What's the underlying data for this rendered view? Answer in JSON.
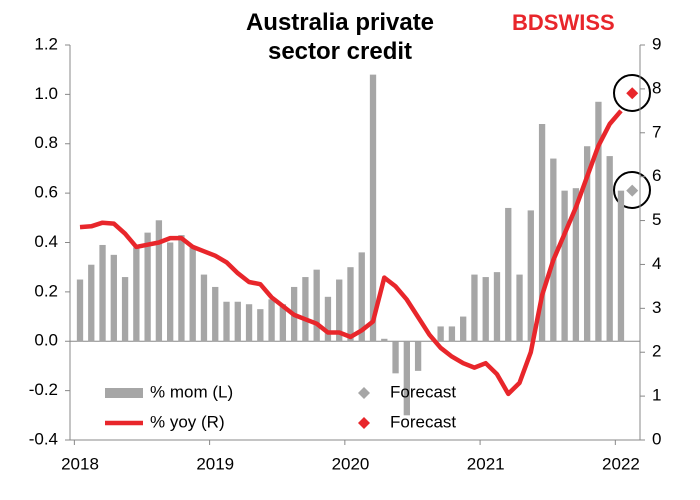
{
  "chart_data": {
    "type": "combo",
    "title": "Australia private sector credit",
    "logo": "BDSWISS",
    "categories": [
      "2018",
      null,
      null,
      null,
      null,
      null,
      null,
      null,
      null,
      null,
      null,
      null,
      "2019",
      null,
      null,
      null,
      null,
      null,
      null,
      null,
      null,
      null,
      null,
      null,
      "2020",
      null,
      null,
      null,
      null,
      null,
      null,
      null,
      null,
      null,
      null,
      null,
      "2021",
      null,
      null,
      null,
      null,
      null,
      null,
      null,
      null,
      null,
      null,
      null,
      "2022",
      null
    ],
    "series": [
      {
        "name": "% mom (L)",
        "type": "bar",
        "axis": "y",
        "color": "#a6a6a6",
        "values": [
          0.25,
          0.31,
          0.39,
          0.35,
          0.26,
          0.38,
          0.44,
          0.49,
          0.4,
          0.43,
          0.38,
          0.27,
          0.22,
          0.16,
          0.16,
          0.15,
          0.13,
          0.17,
          0.15,
          0.22,
          0.26,
          0.29,
          0.18,
          0.25,
          0.3,
          0.36,
          1.08,
          0.01,
          -0.13,
          -0.3,
          -0.12,
          0.0,
          0.06,
          0.06,
          0.1,
          0.27,
          0.26,
          0.28,
          0.54,
          0.27,
          0.53,
          0.88,
          0.74,
          0.61,
          0.62,
          0.79,
          0.97,
          0.75,
          0.61,
          null
        ]
      },
      {
        "name": "% yoy (R)",
        "type": "line",
        "axis": "y2",
        "color": "#e8262b",
        "values": [
          4.85,
          4.87,
          4.95,
          4.93,
          4.7,
          4.4,
          4.45,
          4.5,
          4.6,
          4.6,
          4.4,
          4.3,
          4.2,
          4.05,
          3.8,
          3.6,
          3.55,
          3.25,
          3.05,
          2.85,
          2.75,
          2.65,
          2.45,
          2.45,
          2.35,
          2.5,
          2.7,
          3.7,
          3.5,
          3.2,
          2.8,
          2.4,
          2.1,
          1.9,
          1.75,
          1.65,
          1.75,
          1.5,
          1.05,
          1.3,
          2.0,
          3.3,
          4.1,
          4.7,
          5.3,
          6.0,
          6.7,
          7.2,
          7.5,
          null
        ]
      },
      {
        "name": "Forecast",
        "type": "diamond",
        "axis": "y",
        "color": "#a6a6a6",
        "values": [
          null,
          null,
          null,
          null,
          null,
          null,
          null,
          null,
          null,
          null,
          null,
          null,
          null,
          null,
          null,
          null,
          null,
          null,
          null,
          null,
          null,
          null,
          null,
          null,
          null,
          null,
          null,
          null,
          null,
          null,
          null,
          null,
          null,
          null,
          null,
          null,
          null,
          null,
          null,
          null,
          null,
          null,
          null,
          null,
          null,
          null,
          null,
          null,
          null,
          0.61
        ]
      },
      {
        "name": "Forecast",
        "type": "diamond",
        "axis": "y2",
        "color": "#e8262b",
        "values": [
          null,
          null,
          null,
          null,
          null,
          null,
          null,
          null,
          null,
          null,
          null,
          null,
          null,
          null,
          null,
          null,
          null,
          null,
          null,
          null,
          null,
          null,
          null,
          null,
          null,
          null,
          null,
          null,
          null,
          null,
          null,
          null,
          null,
          null,
          null,
          null,
          null,
          null,
          null,
          null,
          null,
          null,
          null,
          null,
          null,
          null,
          null,
          null,
          null,
          7.9
        ]
      }
    ],
    "ylim": [
      -0.4,
      1.2
    ],
    "yticks": [
      -0.4,
      -0.2,
      {
        "value": 0,
        "label": "0.0"
      },
      0.2,
      0.4,
      0.6,
      0.8,
      {
        "value": 1,
        "label": "1.0"
      },
      1.2
    ],
    "y2lim": [
      0,
      9
    ],
    "y2ticks": [
      0,
      1,
      2,
      3,
      4,
      5,
      6,
      7,
      8,
      9
    ],
    "grid": false
  }
}
